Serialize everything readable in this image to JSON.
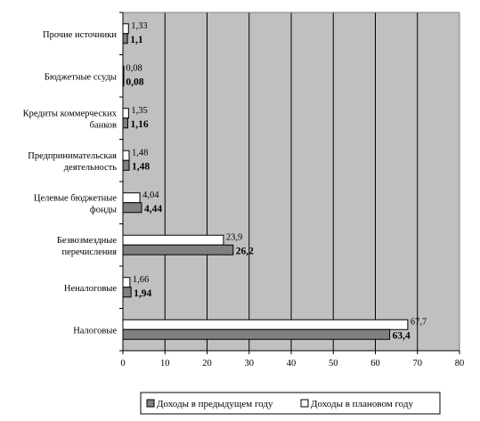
{
  "chart_data": {
    "type": "bar",
    "orientation": "horizontal",
    "categories": [
      [
        "Прочие источники"
      ],
      [
        "Бюджетные ссуды"
      ],
      [
        "Кредиты коммерческих",
        "банков"
      ],
      [
        "Предпринимательская",
        "деятельность"
      ],
      [
        "Целевые бюджетные",
        "фонды"
      ],
      [
        "Безвозмездные",
        "перечисления"
      ],
      [
        "Неналоговые"
      ],
      [
        "Налоговые"
      ]
    ],
    "series": [
      {
        "name": "Доходы в плановом году",
        "color": "#ffffff",
        "values": [
          1.33,
          0.08,
          1.35,
          1.48,
          4.04,
          23.9,
          1.66,
          67.7
        ],
        "labels": [
          "1,33",
          "0,08",
          "1,35",
          "1,48",
          "4,04",
          "23,9",
          "1,66",
          "67,7"
        ]
      },
      {
        "name": "Доходы в предыдущем году",
        "color": "#808080",
        "values": [
          1.1,
          0.08,
          1.16,
          1.48,
          4.44,
          26.2,
          1.94,
          63.4
        ],
        "labels": [
          "1,1",
          "0,08",
          "1,16",
          "1,48",
          "4,44",
          "26,2",
          "1,94",
          "63,4"
        ]
      }
    ],
    "xlim": [
      0,
      80
    ],
    "xticks": [
      0,
      10,
      20,
      30,
      40,
      50,
      60,
      70,
      80
    ],
    "plot_background": "#c0c0c0",
    "grid": "vertical",
    "legend": {
      "placement": "bottom",
      "entries": [
        "Доходы в предыдущем году",
        "Доходы в плановом году"
      ]
    }
  }
}
